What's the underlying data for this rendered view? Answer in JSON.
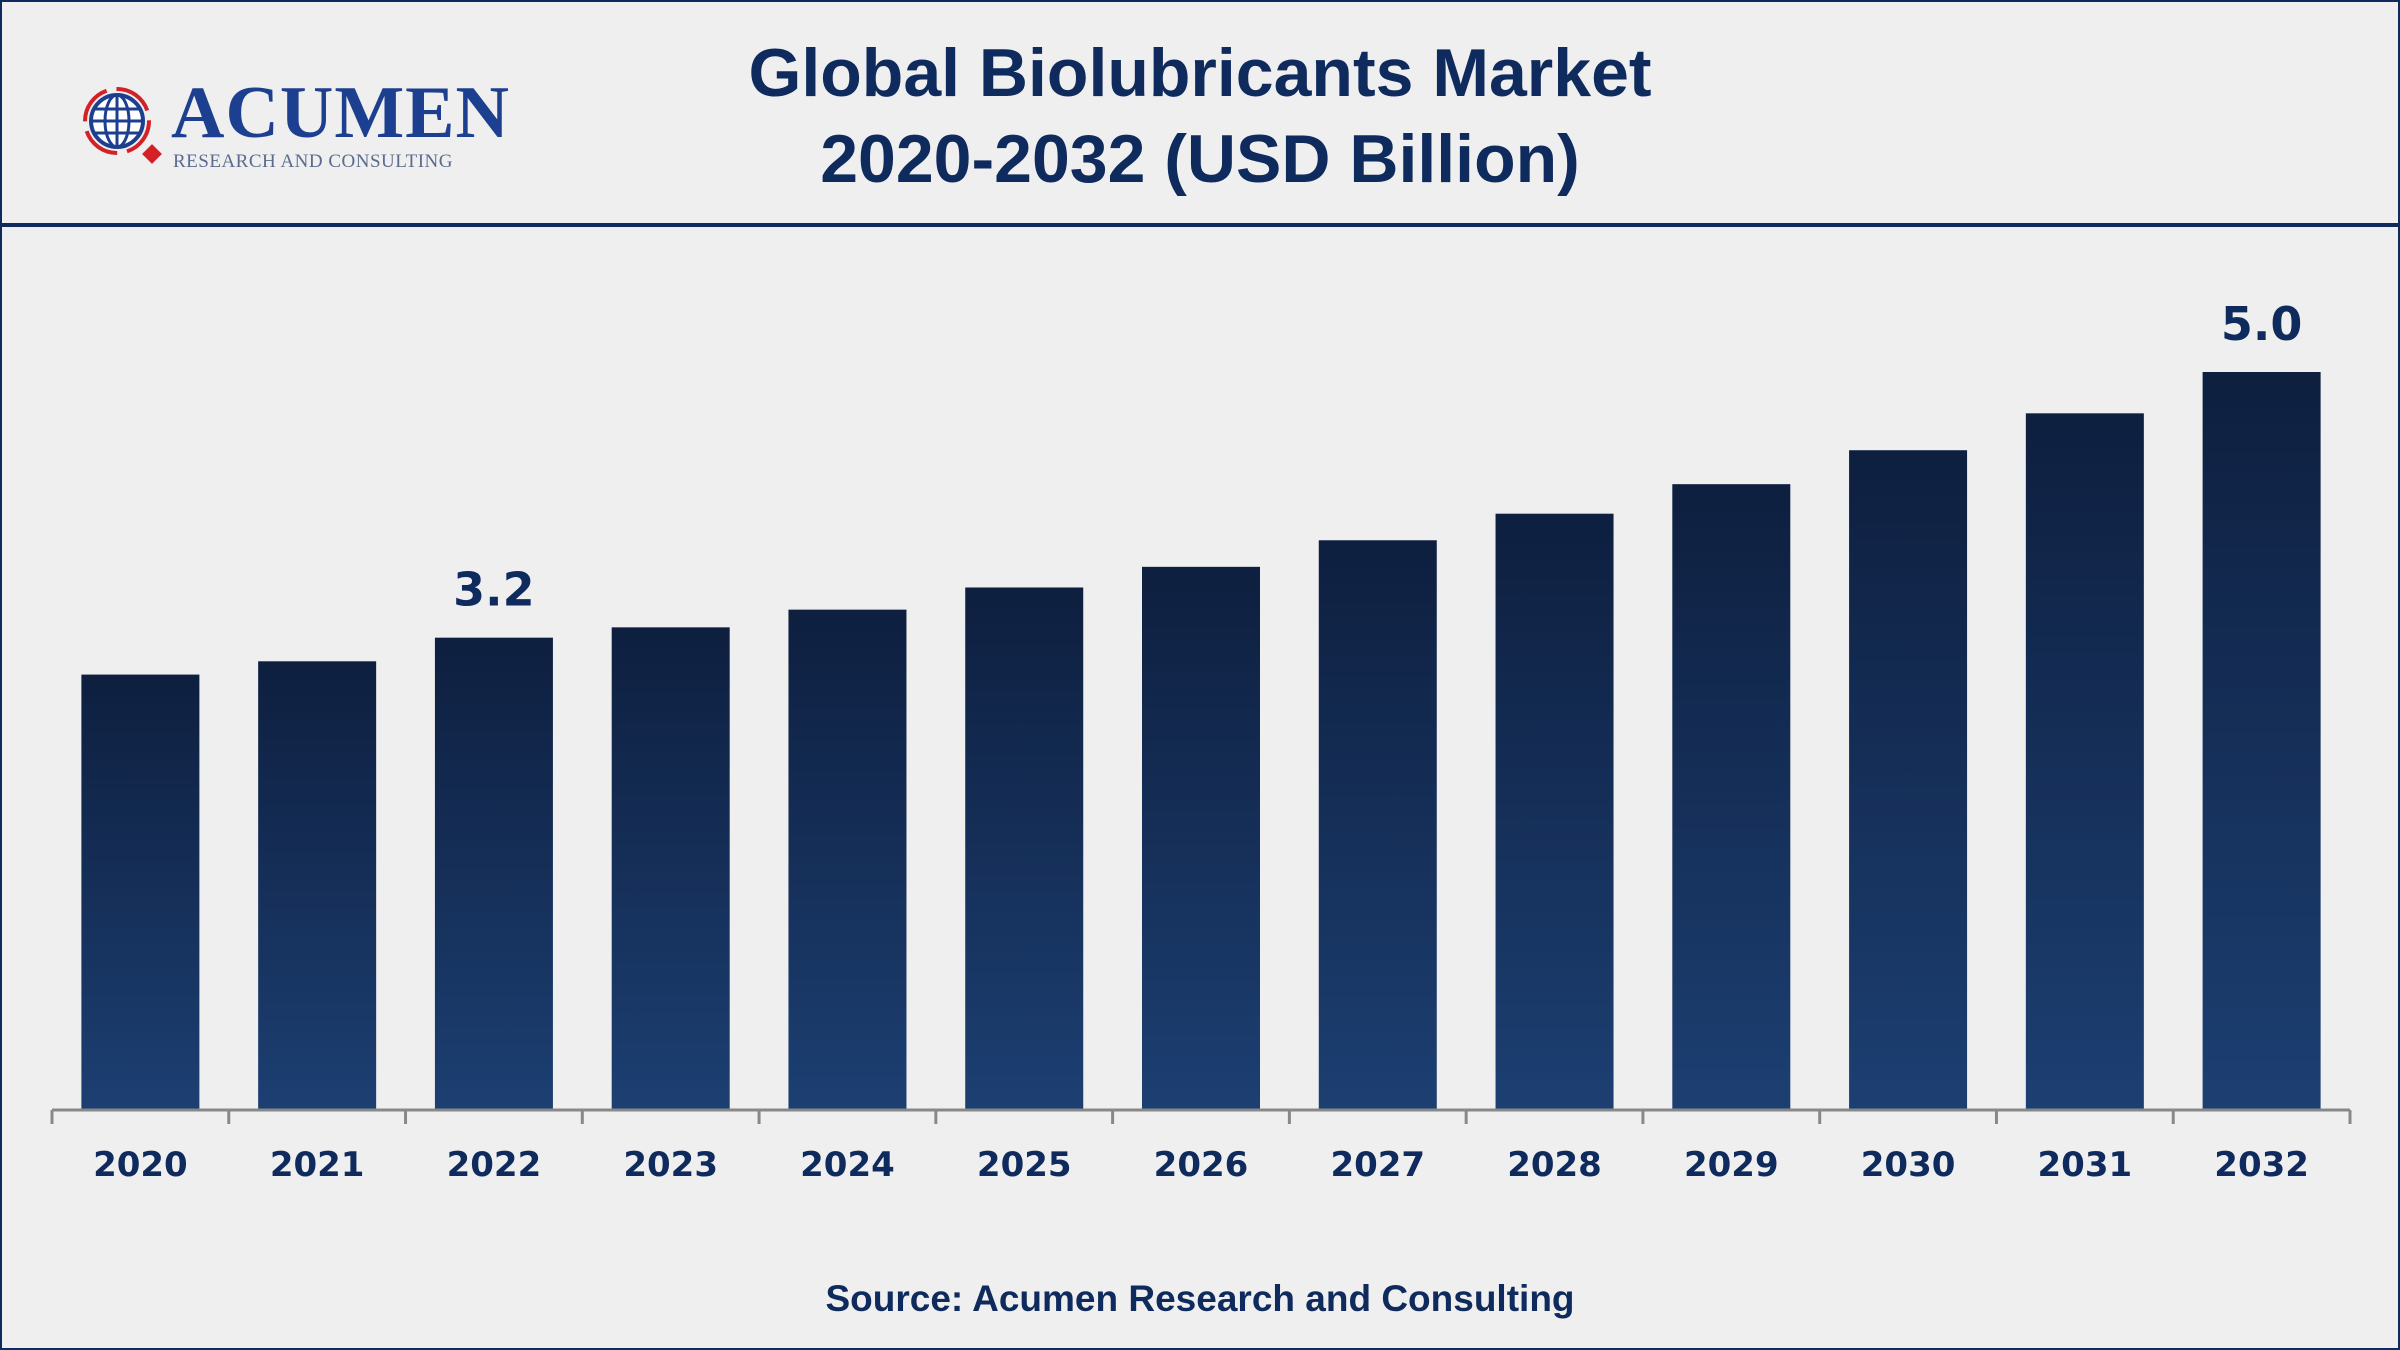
{
  "logo": {
    "name": "ACUMEN",
    "tagline": "RESEARCH AND CONSULTING"
  },
  "colors": {
    "navy": "#0f2a5c",
    "bar_top": "#0e1f3f",
    "bar_bottom": "#1c3f72",
    "logo_red": "#d42027"
  },
  "chart_data": {
    "type": "bar",
    "title": "Global Biolubricants Market",
    "subtitle": "2020-2032 (USD Billion)",
    "xlabel": "",
    "ylabel": "USD Billion",
    "ylim": [
      0,
      5.0
    ],
    "grid": false,
    "categories": [
      "2020",
      "2021",
      "2022",
      "2023",
      "2024",
      "2025",
      "2026",
      "2027",
      "2028",
      "2029",
      "2030",
      "2031",
      "2032"
    ],
    "values": [
      2.95,
      3.04,
      3.2,
      3.27,
      3.39,
      3.54,
      3.68,
      3.86,
      4.04,
      4.24,
      4.47,
      4.72,
      5.0
    ],
    "data_labels": {
      "2022": "3.2",
      "2032": "5.0"
    }
  },
  "source": "Source: Acumen Research and Consulting"
}
